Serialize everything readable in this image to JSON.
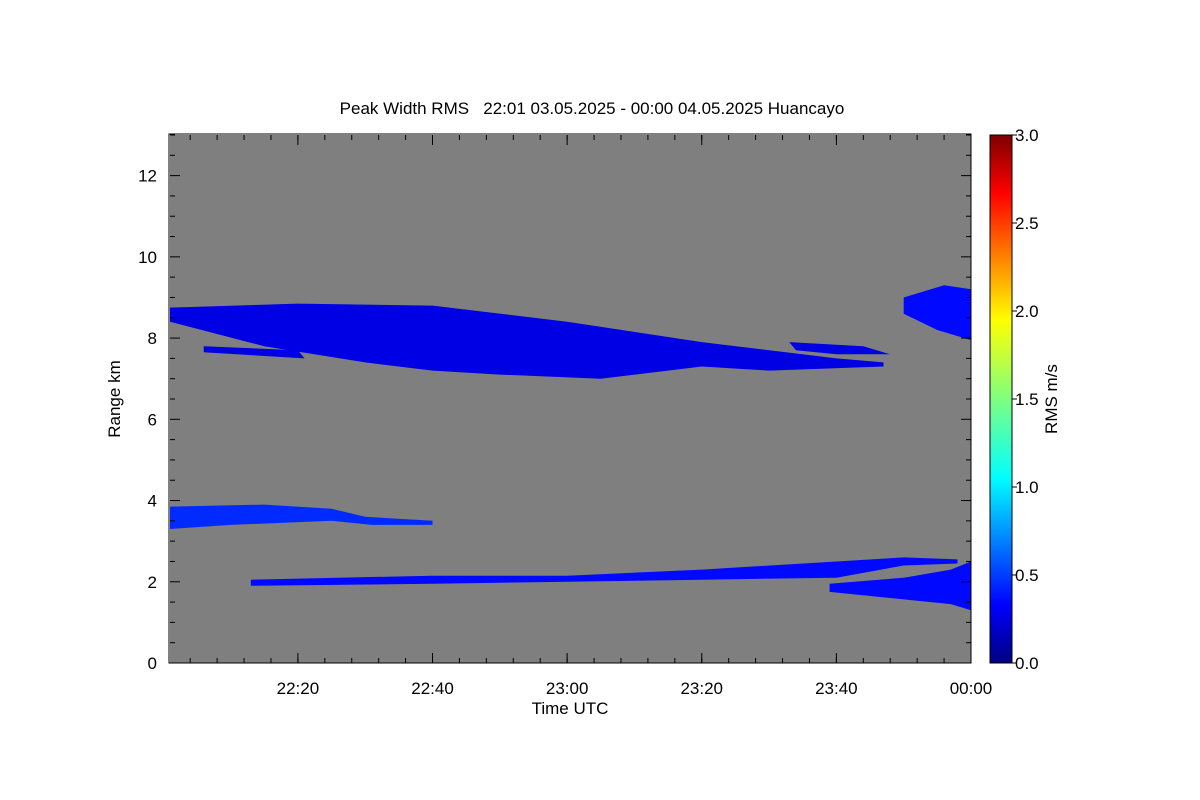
{
  "chart_data": {
    "type": "heatmap",
    "title": "Peak Width RMS   22:01 03.05.2025 - 00:00 04.05.2025 Huancayo",
    "xlabel": "Time UTC",
    "ylabel": "Range km",
    "xlim": [
      "22:01",
      "00:00"
    ],
    "ylim": [
      0,
      13
    ],
    "x_ticks": [
      "22:20",
      "22:40",
      "23:00",
      "23:20",
      "23:40",
      "00:00"
    ],
    "y_ticks": [
      "0",
      "2",
      "4",
      "6",
      "8",
      "10",
      "12"
    ],
    "background": "#7f7f7f",
    "grid": false,
    "colorbar": {
      "label": "RMS m/s",
      "range": [
        0,
        3
      ],
      "ticks": [
        "0.0",
        "0.5",
        "1.0",
        "1.5",
        "2.0",
        "2.5",
        "3.0"
      ],
      "colormap": "jet"
    },
    "regions": [
      {
        "name": "upper cloud layer",
        "rms": 0.3,
        "outline": [
          [
            "22:01",
            8.75
          ],
          [
            "22:20",
            8.85
          ],
          [
            "22:40",
            8.8
          ],
          [
            "23:00",
            8.4
          ],
          [
            "23:20",
            7.9
          ],
          [
            "23:40",
            7.5
          ],
          [
            "23:47",
            7.4
          ],
          [
            "23:47",
            7.3
          ],
          [
            "23:30",
            7.2
          ],
          [
            "23:20",
            7.3
          ],
          [
            "23:05",
            7.0
          ],
          [
            "22:50",
            7.1
          ],
          [
            "22:40",
            7.2
          ],
          [
            "22:30",
            7.4
          ],
          [
            "22:15",
            7.8
          ],
          [
            "22:01",
            8.4
          ]
        ]
      },
      {
        "name": "upper layer thin band",
        "rms": 0.3,
        "outline": [
          [
            "22:06",
            7.8
          ],
          [
            "22:20",
            7.7
          ],
          [
            "22:21",
            7.5
          ],
          [
            "22:06",
            7.65
          ]
        ]
      },
      {
        "name": "upper layer patch",
        "rms": 0.3,
        "outline": [
          [
            "23:33",
            7.9
          ],
          [
            "23:44",
            7.8
          ],
          [
            "23:48",
            7.6
          ],
          [
            "23:40",
            7.6
          ],
          [
            "23:34",
            7.7
          ]
        ]
      },
      {
        "name": "late upper layer",
        "rms": 0.4,
        "outline": [
          [
            "23:50",
            9.0
          ],
          [
            "23:56",
            9.3
          ],
          [
            "00:00",
            9.2
          ],
          [
            "00:00",
            7.95
          ],
          [
            "23:55",
            8.2
          ],
          [
            "23:50",
            8.6
          ]
        ]
      },
      {
        "name": "mid cloud layer",
        "rms": 0.5,
        "outline": [
          [
            "22:01",
            3.85
          ],
          [
            "22:15",
            3.9
          ],
          [
            "22:25",
            3.8
          ],
          [
            "22:30",
            3.6
          ],
          [
            "22:40",
            3.5
          ],
          [
            "22:40",
            3.4
          ],
          [
            "22:31",
            3.4
          ],
          [
            "22:25",
            3.5
          ],
          [
            "22:10",
            3.4
          ],
          [
            "22:01",
            3.3
          ]
        ]
      },
      {
        "name": "lower layer",
        "rms": 0.4,
        "outline": [
          [
            "22:13",
            2.05
          ],
          [
            "22:40",
            2.15
          ],
          [
            "23:00",
            2.15
          ],
          [
            "23:20",
            2.3
          ],
          [
            "23:40",
            2.5
          ],
          [
            "23:50",
            2.6
          ],
          [
            "23:58",
            2.55
          ],
          [
            "23:58",
            2.45
          ],
          [
            "23:50",
            2.4
          ],
          [
            "23:40",
            2.1
          ],
          [
            "23:20",
            2.05
          ],
          [
            "23:00",
            2.0
          ],
          [
            "22:40",
            1.95
          ],
          [
            "22:13",
            1.9
          ]
        ]
      },
      {
        "name": "lower layer tail",
        "rms": 0.4,
        "outline": [
          [
            "23:39",
            1.95
          ],
          [
            "23:50",
            2.1
          ],
          [
            "23:57",
            2.3
          ],
          [
            "00:00",
            2.5
          ],
          [
            "00:00",
            1.3
          ],
          [
            "23:57",
            1.45
          ],
          [
            "23:48",
            1.6
          ],
          [
            "23:39",
            1.75
          ]
        ]
      }
    ]
  }
}
